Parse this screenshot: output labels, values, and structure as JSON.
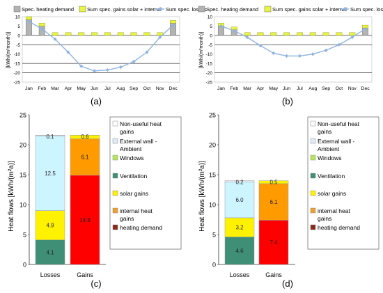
{
  "panels": {
    "a": {
      "caption": "(a)",
      "chart_data": {
        "type": "bar",
        "months": [
          "Jan",
          "Feb",
          "Mar",
          "Apr",
          "May",
          "Jun",
          "Jul",
          "Aug",
          "Sep",
          "Oct",
          "Nov",
          "Dec"
        ],
        "legend": [
          "Spec. heating demand",
          "Sum spec. gains solar + internal",
          "Sum spec. losses"
        ],
        "ylabel": "[kWh/(m²month)]",
        "yticks": [
          10,
          5,
          0,
          -5,
          -10,
          -15,
          -20,
          -25
        ],
        "ylim": [
          -25,
          10
        ],
        "heating_demand": [
          8.5,
          5.0,
          0,
          0,
          0,
          0,
          0,
          0,
          0,
          0,
          0,
          6.5
        ],
        "gains": [
          1.5,
          1.5,
          1.5,
          1.5,
          1.5,
          1.5,
          1.5,
          1.5,
          1.5,
          1.5,
          1.5,
          1.5
        ],
        "losses": [
          7.5,
          3.5,
          -2.0,
          -9.0,
          -16.5,
          -19.0,
          -18.5,
          -17.0,
          -14.0,
          -9.0,
          -1.0,
          5.5
        ],
        "reference_lines": [
          0,
          -5,
          -15,
          -20
        ]
      }
    },
    "b": {
      "caption": "(b)",
      "chart_data": {
        "type": "bar",
        "months": [
          "Jan",
          "Feb",
          "Mar",
          "Apr",
          "May",
          "Jun",
          "Jul",
          "Aug",
          "Sep",
          "Oct",
          "Nov",
          "Dec"
        ],
        "legend": [
          "Spec. heating demand",
          "Sum spec. gains solar + internal",
          "Sum spec. losses"
        ],
        "ylabel": "[kWh/(m²month)]",
        "yticks": [
          10,
          5,
          0,
          -5,
          -10,
          -15,
          -20,
          -25
        ],
        "ylim": [
          -25,
          10
        ],
        "heating_demand": [
          5.0,
          3.0,
          0,
          0,
          0,
          0,
          0,
          0,
          0,
          0,
          0,
          4.0
        ],
        "gains": [
          1.5,
          1.5,
          1.5,
          1.5,
          1.5,
          1.5,
          1.5,
          1.5,
          1.5,
          1.5,
          1.5,
          1.5
        ],
        "losses": [
          5.0,
          2.5,
          -1.0,
          -5.5,
          -9.5,
          -11.0,
          -11.0,
          -10.0,
          -8.0,
          -5.0,
          -1.0,
          3.5
        ],
        "reference_lines": [
          0,
          -5,
          -20
        ]
      }
    },
    "c": {
      "caption": "(c)",
      "chart_data": {
        "type": "bar",
        "stacked": true,
        "categories": [
          "Losses",
          "Gains"
        ],
        "ylabel": "Heat flows [kWh/(m²a)]",
        "yticks": [
          0,
          5,
          10,
          15,
          20,
          25
        ],
        "ylim": [
          0,
          25
        ],
        "losses": [
          {
            "name": "Ventilation",
            "value": 4.1,
            "label": "4.1"
          },
          {
            "name": "Windows",
            "value": 0.0,
            "label": ""
          },
          {
            "name": "solar gains",
            "value": 4.9,
            "label": "4.9"
          },
          {
            "name": "External wall - Ambient",
            "value": 12.5,
            "label": "12.5"
          },
          {
            "name": "Non-useful heat gains",
            "value": 0.1,
            "label": "0.1"
          }
        ],
        "gains": [
          {
            "name": "heating demand",
            "value": 14.9,
            "label": "14.9"
          },
          {
            "name": "internal heat gains",
            "value": 6.1,
            "label": "6.1"
          },
          {
            "name": "solar gains",
            "value": 0.6,
            "label": "0.6"
          }
        ]
      }
    },
    "d": {
      "caption": "(d)",
      "chart_data": {
        "type": "bar",
        "stacked": true,
        "categories": [
          "Losses",
          "Gains"
        ],
        "ylabel": "Heat flows [kWh/(m²a)]",
        "yticks": [
          0,
          5,
          10,
          15,
          20,
          25
        ],
        "ylim": [
          0,
          25
        ],
        "losses": [
          {
            "name": "Ventilation",
            "value": 4.6,
            "label": "4.6"
          },
          {
            "name": "solar gains",
            "value": 3.2,
            "label": "3.2"
          },
          {
            "name": "External wall - Ambient",
            "value": 6.0,
            "label": "6.0"
          },
          {
            "name": "Non-useful heat gains",
            "value": 0.2,
            "label": "0.2"
          }
        ],
        "gains": [
          {
            "name": "heating demand",
            "value": 7.4,
            "label": "7.4"
          },
          {
            "name": "internal heat gains",
            "value": 6.1,
            "label": "6.1"
          },
          {
            "name": "solar gains",
            "value": 0.5,
            "label": "0.5"
          }
        ]
      }
    }
  },
  "legend_cd": [
    {
      "label": "Non-useful heat gains",
      "color": "#fdfdfd"
    },
    {
      "label": "External wall - Ambient",
      "color": "#dfe9f8"
    },
    {
      "label": "Windows",
      "color": "#b6e65a"
    },
    {
      "label": "Ventilation",
      "color": "#3f8f76"
    },
    {
      "label": "solar gains",
      "color": "#fff200"
    },
    {
      "label": "internal heat gains",
      "color": "#f0a030"
    },
    {
      "label": "heating demand",
      "color": "#8a2a1a"
    }
  ],
  "colors": {
    "heating_demand_bar": "#b3b3b3",
    "gains_bar": "#e8f542",
    "losses_line": "#8fb3df",
    "ventilation": "#3f8f76",
    "windows": "#b6e65a",
    "solar": "#fff200",
    "external_wall": "#ccf5ff",
    "non_useful": "#eef3ff",
    "internal": "#ff9a00",
    "heating_red": "#ff0000"
  }
}
